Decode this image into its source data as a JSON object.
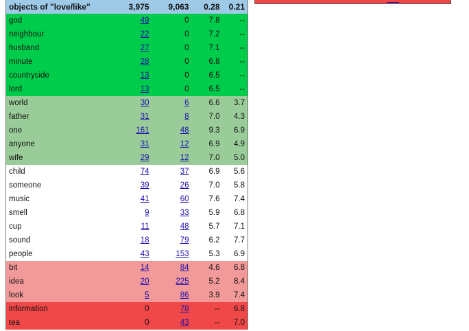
{
  "header": {
    "label": "objects of \"love/like\"",
    "total1": "3,975",
    "total2": "9,063",
    "score1": "0.28",
    "score2": "0.21"
  },
  "colors": {
    "header": "#9ecae8",
    "green": "#00cc4c",
    "light_green": "#99cc99",
    "white": "#ffffff",
    "pink": "#f29999",
    "red": "#f04848",
    "link": "#1a0dab"
  },
  "rows": [
    {
      "word": "god",
      "n1": "49",
      "n2": "0",
      "s1": "7.8",
      "s2": "--",
      "group": "green",
      "n1_link": true,
      "n2_link": false
    },
    {
      "word": "neighbour",
      "n1": "22",
      "n2": "0",
      "s1": "7.2",
      "s2": "--",
      "group": "green",
      "n1_link": true,
      "n2_link": false
    },
    {
      "word": "husband",
      "n1": "27",
      "n2": "0",
      "s1": "7.1",
      "s2": "--",
      "group": "green",
      "n1_link": true,
      "n2_link": false
    },
    {
      "word": "minute",
      "n1": "28",
      "n2": "0",
      "s1": "6.8",
      "s2": "--",
      "group": "green",
      "n1_link": true,
      "n2_link": false
    },
    {
      "word": "countryside",
      "n1": "13",
      "n2": "0",
      "s1": "6.5",
      "s2": "--",
      "group": "green",
      "n1_link": true,
      "n2_link": false
    },
    {
      "word": "lord",
      "n1": "13",
      "n2": "0",
      "s1": "6.5",
      "s2": "--",
      "group": "green",
      "n1_link": true,
      "n2_link": false
    },
    {
      "word": "world",
      "n1": "30",
      "n2": "6",
      "s1": "6.6",
      "s2": "3.7",
      "group": "lightgreen",
      "n1_link": true,
      "n2_link": true
    },
    {
      "word": "father",
      "n1": "31",
      "n2": "8",
      "s1": "7.0",
      "s2": "4.3",
      "group": "lightgreen",
      "n1_link": true,
      "n2_link": true
    },
    {
      "word": "one",
      "n1": "161",
      "n2": "48",
      "s1": "9.3",
      "s2": "6.9",
      "group": "lightgreen",
      "n1_link": true,
      "n2_link": true
    },
    {
      "word": "anyone",
      "n1": "31",
      "n2": "12",
      "s1": "6.9",
      "s2": "4.9",
      "group": "lightgreen",
      "n1_link": true,
      "n2_link": true
    },
    {
      "word": "wife",
      "n1": "29",
      "n2": "12",
      "s1": "7.0",
      "s2": "5.0",
      "group": "lightgreen",
      "n1_link": true,
      "n2_link": true
    },
    {
      "word": "child",
      "n1": "74",
      "n2": "37",
      "s1": "6.9",
      "s2": "5.6",
      "group": "white",
      "n1_link": true,
      "n2_link": true
    },
    {
      "word": "someone",
      "n1": "39",
      "n2": "26",
      "s1": "7.0",
      "s2": "5.8",
      "group": "white",
      "n1_link": true,
      "n2_link": true
    },
    {
      "word": "music",
      "n1": "41",
      "n2": "60",
      "s1": "7.6",
      "s2": "7.4",
      "group": "white",
      "n1_link": true,
      "n2_link": true
    },
    {
      "word": "smell",
      "n1": "9",
      "n2": "33",
      "s1": "5.9",
      "s2": "6.8",
      "group": "white",
      "n1_link": true,
      "n2_link": true
    },
    {
      "word": "cup",
      "n1": "11",
      "n2": "48",
      "s1": "5.7",
      "s2": "7.1",
      "group": "white",
      "n1_link": true,
      "n2_link": true
    },
    {
      "word": "sound",
      "n1": "18",
      "n2": "79",
      "s1": "6.2",
      "s2": "7.7",
      "group": "white",
      "n1_link": true,
      "n2_link": true
    },
    {
      "word": "people",
      "n1": "43",
      "n2": "153",
      "s1": "5.3",
      "s2": "6.9",
      "group": "white",
      "n1_link": true,
      "n2_link": true
    },
    {
      "word": "bit",
      "n1": "14",
      "n2": "84",
      "s1": "4.6",
      "s2": "6.8",
      "group": "pink",
      "n1_link": true,
      "n2_link": true
    },
    {
      "word": "idea",
      "n1": "20",
      "n2": "225",
      "s1": "5.2",
      "s2": "8.4",
      "group": "pink",
      "n1_link": true,
      "n2_link": true
    },
    {
      "word": "look",
      "n1": "5",
      "n2": "86",
      "s1": "3.9",
      "s2": "7.4",
      "group": "pink",
      "n1_link": true,
      "n2_link": true
    },
    {
      "word": "information",
      "n1": "0",
      "n2": "78",
      "s1": "--",
      "s2": "6.8",
      "group": "red",
      "n1_link": false,
      "n2_link": true
    },
    {
      "word": "tea",
      "n1": "0",
      "n2": "43",
      "s1": "--",
      "s2": "7.0",
      "group": "red",
      "n1_link": false,
      "n2_link": true
    }
  ]
}
